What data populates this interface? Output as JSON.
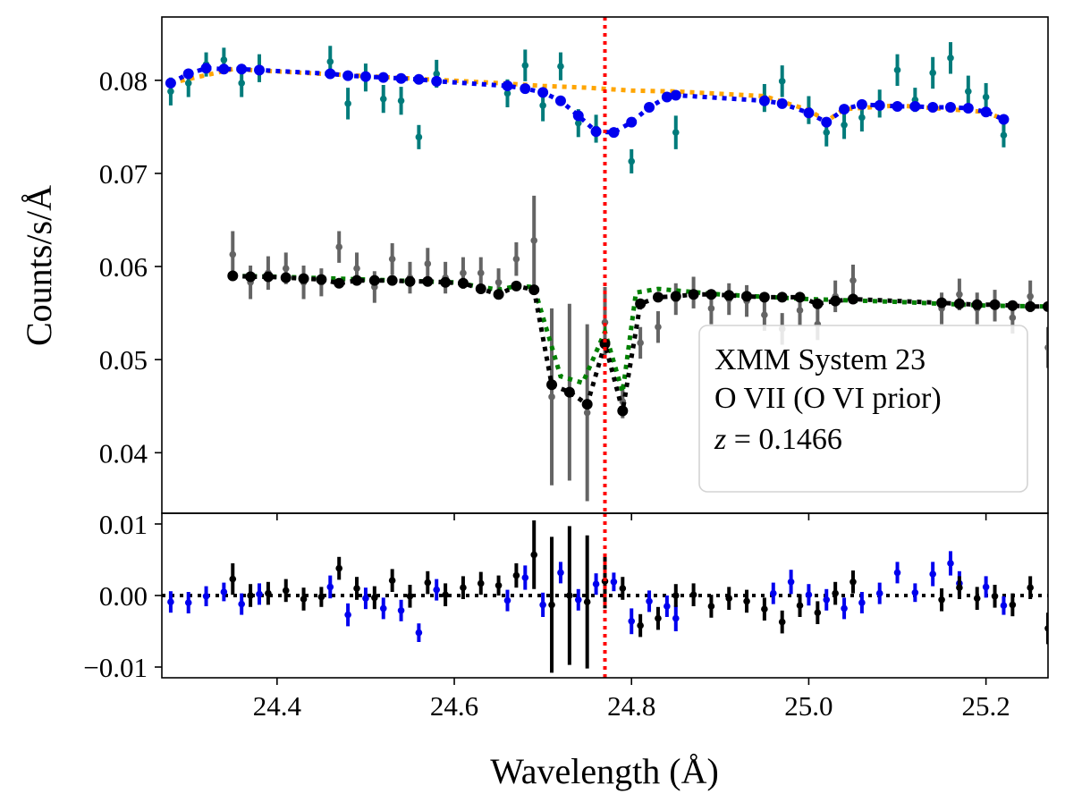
{
  "chart_data": [
    {
      "type": "scatter",
      "panel": "main",
      "xlabel": "Wavelength (Å)",
      "ylabel": "Counts/s/Å",
      "xlim": [
        24.27,
        25.27
      ],
      "ylim": [
        0.0335,
        0.0868
      ],
      "xticks": [
        24.4,
        24.6,
        24.8,
        25.0,
        25.2
      ],
      "xtick_labels": [
        "24.4",
        "24.6",
        "24.8",
        "25.0",
        "25.2"
      ],
      "yticks": [
        0.04,
        0.05,
        0.06,
        0.07,
        0.08
      ],
      "ytick_labels": [
        "0.04",
        "0.05",
        "0.06",
        "0.07",
        "0.08"
      ],
      "vline": 24.77,
      "legend": {
        "placement": "lower-right",
        "lines": [
          "XMM System 23",
          "O VII (O VI prior)",
          "z = 0.1466"
        ]
      },
      "colors": {
        "upper_data": "#007b7b",
        "upper_model": "#0000ee",
        "upper_continuum": "#ffa500",
        "lower_data": "#646464",
        "lower_model": "#000000",
        "lower_continuum": "#008000",
        "vline": "#ff0000"
      },
      "series": [
        {
          "role": "upper-data",
          "x": [
            24.28,
            24.3,
            24.32,
            24.34,
            24.36,
            24.38,
            24.46,
            24.48,
            24.5,
            24.52,
            24.54,
            24.56,
            24.58,
            24.66,
            24.68,
            24.7,
            24.72,
            24.74,
            24.76,
            24.8,
            24.85,
            24.95,
            24.97,
            25.0,
            25.02,
            25.04,
            25.06,
            25.08,
            25.1,
            25.12,
            25.14,
            25.16,
            25.18,
            25.2,
            25.22
          ],
          "y": [
            0.0788,
            0.0797,
            0.0817,
            0.0822,
            0.0797,
            0.0813,
            0.082,
            0.0775,
            0.0803,
            0.078,
            0.0778,
            0.0739,
            0.0807,
            0.0786,
            0.0816,
            0.0773,
            0.0815,
            0.0754,
            0.0748,
            0.0713,
            0.0744,
            0.0781,
            0.0799,
            0.0768,
            0.0744,
            0.0752,
            0.076,
            0.0775,
            0.0811,
            0.0779,
            0.0808,
            0.0824,
            0.0788,
            0.0782,
            0.0741
          ],
          "err": [
            0.0015,
            0.0015,
            0.0013,
            0.0013,
            0.0015,
            0.0015,
            0.0017,
            0.0017,
            0.0015,
            0.0015,
            0.0015,
            0.0013,
            0.0015,
            0.0015,
            0.0017,
            0.0017,
            0.0015,
            0.0015,
            0.0015,
            0.0013,
            0.0018,
            0.0015,
            0.0017,
            0.0015,
            0.0015,
            0.0015,
            0.0015,
            0.0015,
            0.0017,
            0.0013,
            0.0017,
            0.0017,
            0.0017,
            0.0015,
            0.0013
          ]
        },
        {
          "role": "upper-model",
          "x": [
            24.28,
            24.3,
            24.32,
            24.34,
            24.36,
            24.38,
            24.46,
            24.48,
            24.5,
            24.52,
            24.54,
            24.56,
            24.58,
            24.66,
            24.68,
            24.7,
            24.72,
            24.74,
            24.76,
            24.78,
            24.8,
            24.82,
            24.84,
            24.85,
            24.95,
            24.97,
            25.0,
            25.02,
            25.04,
            25.06,
            25.08,
            25.1,
            25.12,
            25.14,
            25.16,
            25.18,
            25.2,
            25.22
          ],
          "y": [
            0.0797,
            0.0807,
            0.0813,
            0.0812,
            0.0812,
            0.0811,
            0.0807,
            0.0805,
            0.0804,
            0.0803,
            0.0802,
            0.0801,
            0.0799,
            0.0794,
            0.0791,
            0.0787,
            0.0778,
            0.0762,
            0.0745,
            0.0744,
            0.0755,
            0.0771,
            0.0782,
            0.0784,
            0.0778,
            0.0775,
            0.0765,
            0.0755,
            0.0769,
            0.0774,
            0.0773,
            0.0772,
            0.0772,
            0.0771,
            0.0771,
            0.077,
            0.0766,
            0.0758
          ]
        },
        {
          "role": "upper-continuum",
          "x": [
            24.28,
            24.35,
            24.45,
            24.55,
            24.65,
            24.7,
            24.75,
            24.8,
            24.85,
            24.95,
            25.0,
            25.02,
            25.04,
            25.1,
            25.2,
            25.22
          ],
          "y": [
            0.0797,
            0.0812,
            0.0807,
            0.0802,
            0.0797,
            0.0794,
            0.0792,
            0.0789,
            0.0788,
            0.0783,
            0.0768,
            0.0756,
            0.0769,
            0.0773,
            0.0766,
            0.0758
          ]
        },
        {
          "role": "lower-data",
          "x": [
            24.35,
            24.37,
            24.39,
            24.41,
            24.43,
            24.45,
            24.47,
            24.49,
            24.51,
            24.53,
            24.55,
            24.57,
            24.59,
            24.61,
            24.63,
            24.65,
            24.67,
            24.69,
            24.71,
            24.73,
            24.75,
            24.77,
            24.79,
            24.81,
            24.83,
            24.85,
            24.87,
            24.89,
            24.91,
            24.93,
            24.95,
            24.97,
            24.99,
            25.01,
            25.03,
            25.05,
            25.15,
            25.17,
            25.19,
            25.21,
            25.23,
            25.25,
            25.27
          ],
          "y": [
            0.0613,
            0.0583,
            0.0593,
            0.0598,
            0.0583,
            0.0583,
            0.0621,
            0.0598,
            0.0578,
            0.0608,
            0.0588,
            0.0603,
            0.0588,
            0.0593,
            0.0593,
            0.0583,
            0.0608,
            0.0628,
            0.046,
            0.0465,
            0.0443,
            0.054,
            0.0455,
            0.0518,
            0.0535,
            0.0565,
            0.0572,
            0.0555,
            0.0565,
            0.0563,
            0.0548,
            0.0533,
            0.0553,
            0.0538,
            0.0568,
            0.0585,
            0.0555,
            0.057,
            0.0555,
            0.0558,
            0.0545,
            0.0568,
            0.0513
          ],
          "err": [
            0.0025,
            0.0018,
            0.0018,
            0.0017,
            0.0018,
            0.0015,
            0.0017,
            0.0017,
            0.0017,
            0.0017,
            0.0017,
            0.0017,
            0.0017,
            0.0017,
            0.0017,
            0.0015,
            0.0018,
            0.0048,
            0.0095,
            0.0095,
            0.0095,
            0.0038,
            0.0018,
            0.0017,
            0.0017,
            0.0017,
            0.0017,
            0.0017,
            0.0017,
            0.0017,
            0.0017,
            0.0017,
            0.0017,
            0.0017,
            0.0017,
            0.0017,
            0.0017,
            0.0017,
            0.0017,
            0.0017,
            0.0017,
            0.0017,
            0.0022
          ]
        },
        {
          "role": "lower-model",
          "x": [
            24.35,
            24.37,
            24.39,
            24.41,
            24.43,
            24.45,
            24.47,
            24.49,
            24.51,
            24.53,
            24.55,
            24.57,
            24.59,
            24.61,
            24.63,
            24.65,
            24.67,
            24.69,
            24.71,
            24.73,
            24.75,
            24.77,
            24.79,
            24.81,
            24.83,
            24.85,
            24.87,
            24.89,
            24.91,
            24.93,
            24.95,
            24.97,
            24.99,
            25.01,
            25.03,
            25.05,
            25.15,
            25.17,
            25.19,
            25.21,
            25.23,
            25.25,
            25.27
          ],
          "y": [
            0.059,
            0.0589,
            0.0589,
            0.0588,
            0.0587,
            0.0586,
            0.0582,
            0.0585,
            0.0585,
            0.0585,
            0.0584,
            0.0584,
            0.0583,
            0.0582,
            0.0576,
            0.057,
            0.0579,
            0.0575,
            0.0473,
            0.0465,
            0.0452,
            0.0517,
            0.0445,
            0.056,
            0.0567,
            0.0568,
            0.057,
            0.057,
            0.0569,
            0.0568,
            0.0567,
            0.0567,
            0.0567,
            0.056,
            0.0563,
            0.0565,
            0.0561,
            0.056,
            0.0559,
            0.0559,
            0.0558,
            0.0557,
            0.0557
          ]
        },
        {
          "role": "lower-continuum",
          "x": [
            24.35,
            24.4,
            24.5,
            24.6,
            24.65,
            24.67,
            24.69,
            24.7,
            24.72,
            24.745,
            24.77,
            24.79,
            24.805,
            24.83,
            24.9,
            25.0,
            25.1,
            25.2,
            25.27
          ],
          "y": [
            0.059,
            0.0589,
            0.0586,
            0.0583,
            0.0575,
            0.0579,
            0.0578,
            0.0546,
            0.0482,
            0.0475,
            0.053,
            0.0465,
            0.0572,
            0.0576,
            0.057,
            0.0565,
            0.0562,
            0.0558,
            0.0557
          ]
        }
      ]
    },
    {
      "type": "scatter",
      "panel": "residuals",
      "xlim": [
        24.27,
        25.27
      ],
      "ylim": [
        -0.0115,
        0.0115
      ],
      "yticks": [
        -0.01,
        0.0,
        0.01
      ],
      "ytick_labels": [
        "−0.01",
        "0.00",
        "0.01"
      ],
      "hline": 0.0,
      "series": [
        {
          "role": "upper-residuals",
          "x": [
            24.28,
            24.3,
            24.32,
            24.34,
            24.36,
            24.38,
            24.46,
            24.48,
            24.5,
            24.52,
            24.54,
            24.56,
            24.58,
            24.66,
            24.68,
            24.7,
            24.72,
            24.74,
            24.76,
            24.78,
            24.8,
            24.82,
            24.84,
            24.85,
            24.96,
            24.98,
            25.0,
            25.02,
            25.04,
            25.06,
            25.08,
            25.1,
            25.12,
            25.14,
            25.16,
            25.17,
            25.2,
            25.22
          ],
          "y": [
            -0.0009,
            -0.001,
            -0.0001,
            0.0005,
            -0.0012,
            0.0002,
            0.0012,
            -0.0027,
            -0.0004,
            -0.0018,
            -0.0021,
            -0.0052,
            0.0008,
            -0.0007,
            0.0025,
            -0.0013,
            0.0032,
            -0.0006,
            0.0016,
            0.0019,
            -0.0036,
            -0.0008,
            -0.0015,
            -0.0032,
            0.0003,
            0.0019,
            0.0001,
            -0.0006,
            -0.0018,
            -0.001,
            0.0003,
            0.0032,
            0.0004,
            0.003,
            0.0045,
            0.0017,
            0.0012,
            -0.0014
          ],
          "err": [
            0.0015,
            0.0015,
            0.0014,
            0.0013,
            0.0015,
            0.0015,
            0.0016,
            0.0016,
            0.0015,
            0.0015,
            0.0015,
            0.0013,
            0.0015,
            0.0015,
            0.0017,
            0.0017,
            0.0015,
            0.0015,
            0.0015,
            0.0013,
            0.0018,
            0.0015,
            0.0015,
            0.0018,
            0.0015,
            0.0017,
            0.0015,
            0.0015,
            0.0015,
            0.0015,
            0.0015,
            0.0015,
            0.0013,
            0.0017,
            0.0017,
            0.0017,
            0.0015,
            0.0013
          ]
        },
        {
          "role": "lower-residuals",
          "x": [
            24.35,
            24.37,
            24.39,
            24.41,
            24.43,
            24.45,
            24.47,
            24.49,
            24.51,
            24.53,
            24.55,
            24.57,
            24.59,
            24.61,
            24.63,
            24.65,
            24.67,
            24.69,
            24.71,
            24.73,
            24.75,
            24.77,
            24.79,
            24.81,
            24.83,
            24.85,
            24.87,
            24.89,
            24.91,
            24.93,
            24.95,
            24.97,
            24.99,
            25.01,
            25.03,
            25.05,
            25.15,
            25.17,
            25.19,
            25.21,
            25.23,
            25.25,
            25.27
          ],
          "y": [
            0.0023,
            0.0,
            0.0003,
            0.0007,
            -0.0005,
            -0.0002,
            0.0038,
            0.001,
            -0.0003,
            0.0021,
            -0.0001,
            0.0018,
            0.0001,
            0.0011,
            0.0017,
            0.0014,
            0.0028,
            0.0057,
            -0.0013,
            0.0,
            -0.0009,
            0.002,
            0.001,
            -0.0042,
            -0.0032,
            0.0,
            0.0001,
            -0.0015,
            -0.0004,
            -0.0008,
            -0.0019,
            -0.0037,
            -0.0014,
            -0.0024,
            0.0003,
            0.0019,
            -0.0006,
            0.0011,
            -0.0004,
            -0.0001,
            -0.0013,
            0.0011,
            -0.0046
          ],
          "err": [
            0.0022,
            0.0016,
            0.0016,
            0.0016,
            0.0016,
            0.0014,
            0.0016,
            0.0016,
            0.0016,
            0.0016,
            0.0016,
            0.0016,
            0.0016,
            0.0016,
            0.0016,
            0.0014,
            0.0017,
            0.0048,
            0.0095,
            0.0097,
            0.0093,
            0.0038,
            0.0016,
            0.0016,
            0.0016,
            0.0016,
            0.0016,
            0.0016,
            0.0016,
            0.0016,
            0.0016,
            0.0016,
            0.0016,
            0.0016,
            0.0016,
            0.0016,
            0.0016,
            0.0016,
            0.0016,
            0.0016,
            0.0016,
            0.0016,
            0.0022
          ]
        }
      ]
    }
  ]
}
